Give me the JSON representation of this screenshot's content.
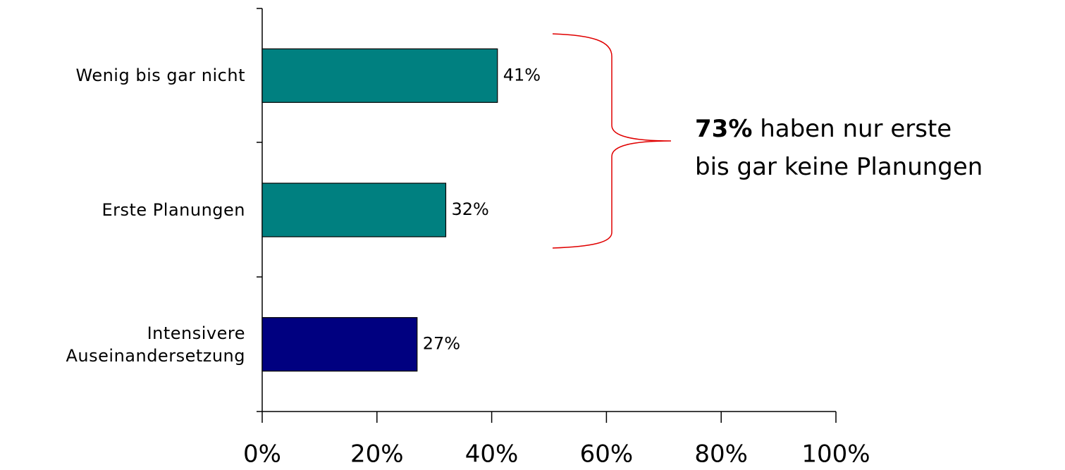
{
  "chart_data": {
    "type": "barh",
    "categories": [
      "Wenig bis gar nicht",
      "Erste Planungen",
      "Intensivere Auseinandersetzung"
    ],
    "values": [
      41,
      32,
      27
    ],
    "value_labels": [
      "41%",
      "32%",
      "27%"
    ],
    "colors": [
      "#008080",
      "#008080",
      "#000080"
    ],
    "xlim": [
      0,
      100
    ],
    "xticks": [
      {
        "value": 0,
        "label": "0%"
      },
      {
        "value": 20,
        "label": "20%"
      },
      {
        "value": 40,
        "label": "40%"
      },
      {
        "value": 60,
        "label": "60%"
      },
      {
        "value": 80,
        "label": "80%"
      },
      {
        "value": 100,
        "label": "100%"
      }
    ],
    "grid": false,
    "annotation": {
      "emphasis": "73%",
      "lines": [
        "haben nur erste",
        "bis gar keine Planungen"
      ]
    }
  }
}
